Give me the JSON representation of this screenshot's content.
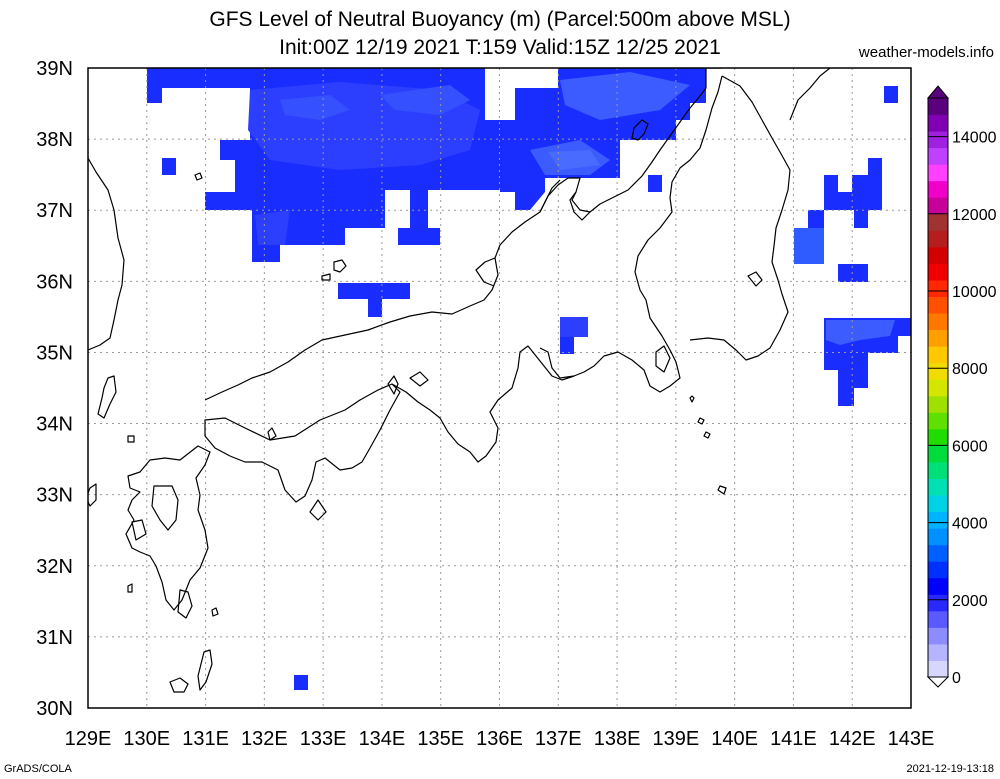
{
  "header": {
    "title_line1": "GFS Level of Neutral Buoyancy (m) (Parcel:500m above MSL)",
    "title_line2": "Init:00Z 12/19 2021 T:159 Valid:15Z 12/25 2021",
    "site": "weather-models.info"
  },
  "footer": {
    "left": "GrADS/COLA",
    "right": "2021-12-19-13:18"
  },
  "map": {
    "lon_range": [
      129,
      143
    ],
    "lat_range": [
      30,
      39
    ],
    "lon_labels": [
      "129E",
      "130E",
      "131E",
      "132E",
      "133E",
      "134E",
      "135E",
      "136E",
      "137E",
      "138E",
      "139E",
      "140E",
      "141E",
      "142E",
      "143E"
    ],
    "lat_labels": [
      "30N",
      "31N",
      "32N",
      "33N",
      "34N",
      "35N",
      "36N",
      "37N",
      "38N",
      "39N"
    ],
    "grid": true,
    "grid_step_deg": 1
  },
  "colorbar": {
    "ticks": [
      "0",
      "2000",
      "4000",
      "6000",
      "8000",
      "10000",
      "12000",
      "14000"
    ],
    "tick_values": [
      0,
      2000,
      4000,
      6000,
      8000,
      10000,
      12000,
      14000
    ],
    "max": 15000,
    "colors": [
      "#d6d6ff",
      "#b4b4ff",
      "#8c8cff",
      "#5a5aff",
      "#2828ff",
      "#0000ff",
      "#0030ff",
      "#0060ff",
      "#0090ff",
      "#00b4ff",
      "#00d2e6",
      "#00e0b4",
      "#00e078",
      "#00dc3c",
      "#20dc00",
      "#60e000",
      "#a0e000",
      "#d2e600",
      "#f0dc00",
      "#ffc800",
      "#ffa000",
      "#ff7800",
      "#ff5000",
      "#ff2800",
      "#f00000",
      "#d20000",
      "#b41e1e",
      "#a03232",
      "#c8009a",
      "#f000c8",
      "#ff40ff",
      "#c040ff",
      "#a020e0",
      "#8000b4",
      "#5a007e"
    ]
  },
  "chart_data": {
    "type": "heatmap",
    "title": "GFS Level of Neutral Buoyancy (m) (Parcel:500m above MSL)",
    "subtitle": "Init:00Z 12/19 2021 T:159 Valid:15Z 12/25 2021",
    "xlabel": "",
    "ylabel": "",
    "units": "m",
    "xlim": [
      129,
      143
    ],
    "ylim": [
      30,
      39
    ],
    "value_range": [
      0,
      15000
    ],
    "regions": [
      {
        "lon": [
          130.0,
          136.0
        ],
        "lat": [
          37.9,
          39.0
        ],
        "level_m": 1800
      },
      {
        "lon": [
          132.0,
          136.0
        ],
        "lat": [
          37.0,
          38.7
        ],
        "level_m": 1700
      },
      {
        "lon": [
          131.0,
          133.3
        ],
        "lat": [
          36.8,
          38.0
        ],
        "level_m": 1800
      },
      {
        "lon": [
          136.0,
          138.6
        ],
        "lat": [
          37.4,
          39.0
        ],
        "level_m": 1900
      },
      {
        "lon": [
          137.3,
          138.5
        ],
        "lat": [
          38.3,
          39.0
        ],
        "level_m": 2100
      },
      {
        "lon": [
          138.0,
          139.5
        ],
        "lat": [
          38.0,
          39.0
        ],
        "level_m": 1800
      },
      {
        "lon": [
          133.3,
          134.6
        ],
        "lat": [
          35.6,
          36.0
        ],
        "level_m": 1800
      },
      {
        "lon": [
          137.0,
          137.5
        ],
        "lat": [
          35.0,
          35.5
        ],
        "level_m": 1900
      },
      {
        "lon": [
          141.0,
          141.5
        ],
        "lat": [
          36.2,
          36.8
        ],
        "level_m": 2200
      },
      {
        "lon": [
          141.5,
          142.8
        ],
        "lat": [
          36.8,
          37.5
        ],
        "level_m": 1800
      },
      {
        "lon": [
          141.5,
          143.0
        ],
        "lat": [
          34.8,
          35.5
        ],
        "level_m": 1900
      },
      {
        "lon": [
          141.8,
          142.3
        ],
        "lat": [
          34.3,
          34.8
        ],
        "level_m": 1700
      },
      {
        "lon": [
          132.5,
          132.7
        ],
        "lat": [
          30.3,
          30.5
        ],
        "level_m": 1600
      }
    ]
  }
}
